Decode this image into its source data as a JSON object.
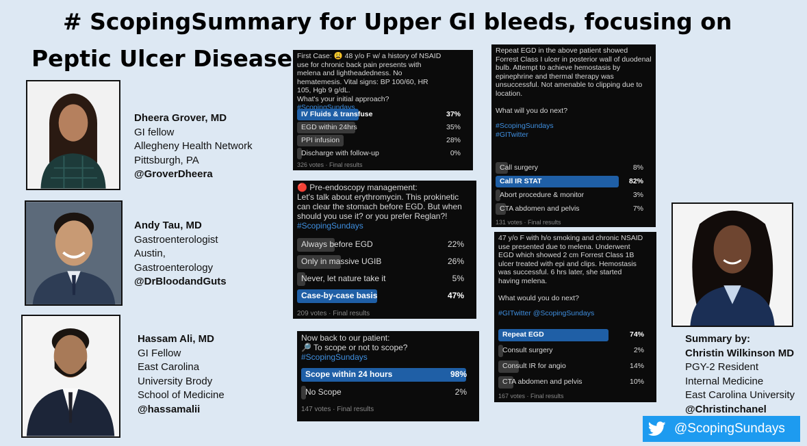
{
  "title": {
    "line1": "# ScopingSummary for Upper GI bleeds, focusing on",
    "line2": "Peptic Ulcer Disease"
  },
  "authors": [
    {
      "name": "Dheera Grover, MD",
      "lines": [
        "GI fellow",
        "Allegheny Health Network",
        "Pittsburgh, PA"
      ],
      "handle": "@GroverDheera"
    },
    {
      "name": "Andy Tau, MD",
      "lines": [
        "Gastroenterologist",
        "Austin,",
        "Gastroenterology"
      ],
      "handle": "@DrBloodandGuts"
    },
    {
      "name": "Hassam Ali, MD",
      "lines": [
        "GI Fellow",
        "East Carolina",
        "University Brody",
        "School of Medicine"
      ],
      "handle": "@hassamalii"
    }
  ],
  "summary": {
    "label": "Summary by:",
    "name": "Christin Wilkinson MD",
    "lines": [
      "PGY-2 Resident",
      "Internal Medicine",
      "East Carolina University"
    ],
    "handle": "@Christinchanel"
  },
  "polls": [
    {
      "question": "First Case: 😩 48 y/o F w/ a history of NSAID\nuse for chronic back pain presents with\nmelena and lightheadedness. No\nhematemesis. Vital signs: BP 100/60, HR\n105, Hgb 9 g/dL.\nWhat's your initial approach?",
      "tag": "#ScopingSundays",
      "options": [
        {
          "label": "IV Fluids & transfuse",
          "pct": "37%",
          "value": 37,
          "win": true
        },
        {
          "label": "EGD within 24hrs",
          "pct": "35%",
          "value": 35,
          "win": false
        },
        {
          "label": "PPI infusion",
          "pct": "28%",
          "value": 28,
          "win": false
        },
        {
          "label": "Discharge with follow-up",
          "pct": "0%",
          "value": 0,
          "win": false
        }
      ],
      "votes": "326 votes · Final results"
    },
    {
      "question": "🔴 Pre-endoscopy management:\nLet's talk about erythromycin. This prokinetic\ncan clear the stomach before EGD. But when\nshould you use it? or you prefer Reglan?!",
      "tag": "#ScopingSundays",
      "options": [
        {
          "label": "Always before EGD",
          "pct": "22%",
          "value": 22,
          "win": false
        },
        {
          "label": "Only in massive UGIB",
          "pct": "26%",
          "value": 26,
          "win": false
        },
        {
          "label": "Never, let nature take it",
          "pct": "5%",
          "value": 5,
          "win": false
        },
        {
          "label": "Case-by-case basis",
          "pct": "47%",
          "value": 47,
          "win": true
        }
      ],
      "votes": "209 votes · Final results"
    },
    {
      "question": "Now back to our patient:\n🔎 To scope or not to scope?",
      "tag": "#ScopingSundays",
      "options": [
        {
          "label": "Scope within 24 hours",
          "pct": "98%",
          "value": 98,
          "win": true
        },
        {
          "label": "No Scope",
          "pct": "2%",
          "value": 2,
          "win": false
        }
      ],
      "votes": "147 votes · Final results"
    },
    {
      "question": "Repeat EGD in the above patient showed\nForrest Class I ulcer in posterior wall of duodenal\nbulb. Attempt to achieve hemostasis by\nepinephrine and thermal therapy was\nunsuccessful. Not amenable to clipping due to\nlocation.\n\nWhat will you do next?",
      "tag": "#ScopingSundays\n#GITwitter",
      "options": [
        {
          "label": "Call surgery",
          "pct": "8%",
          "value": 8,
          "win": false
        },
        {
          "label": "Call IR STAT",
          "pct": "82%",
          "value": 82,
          "win": true
        },
        {
          "label": "Abort procedure & monitor",
          "pct": "3%",
          "value": 3,
          "win": false
        },
        {
          "label": "CTA abdomen and pelvis",
          "pct": "7%",
          "value": 7,
          "win": false
        }
      ],
      "votes": "131 votes · Final results"
    },
    {
      "question": "47 y/o F with h/o smoking and chronic NSAID\nuse presented due to melena. Underwent\nEGD which showed 2 cm Forrest Class 1B\nulcer treated with epi and clips. Hemostasis\nwas successful. 6 hrs later, she started\nhaving melena.\n\nWhat would you do next?",
      "tag": "#GITwitter @ScopingSundays",
      "options": [
        {
          "label": "Repeat EGD",
          "pct": "74%",
          "value": 74,
          "win": true
        },
        {
          "label": "Consult surgery",
          "pct": "2%",
          "value": 2,
          "win": false
        },
        {
          "label": "Consult IR for angio",
          "pct": "14%",
          "value": 14,
          "win": false
        },
        {
          "label": "CTA abdomen and pelvis",
          "pct": "10%",
          "value": 10,
          "win": false
        }
      ],
      "votes": "167 votes · Final results"
    }
  ],
  "badge": {
    "icon": "twitter-bird-icon",
    "handle": "@ScopingSundays"
  }
}
